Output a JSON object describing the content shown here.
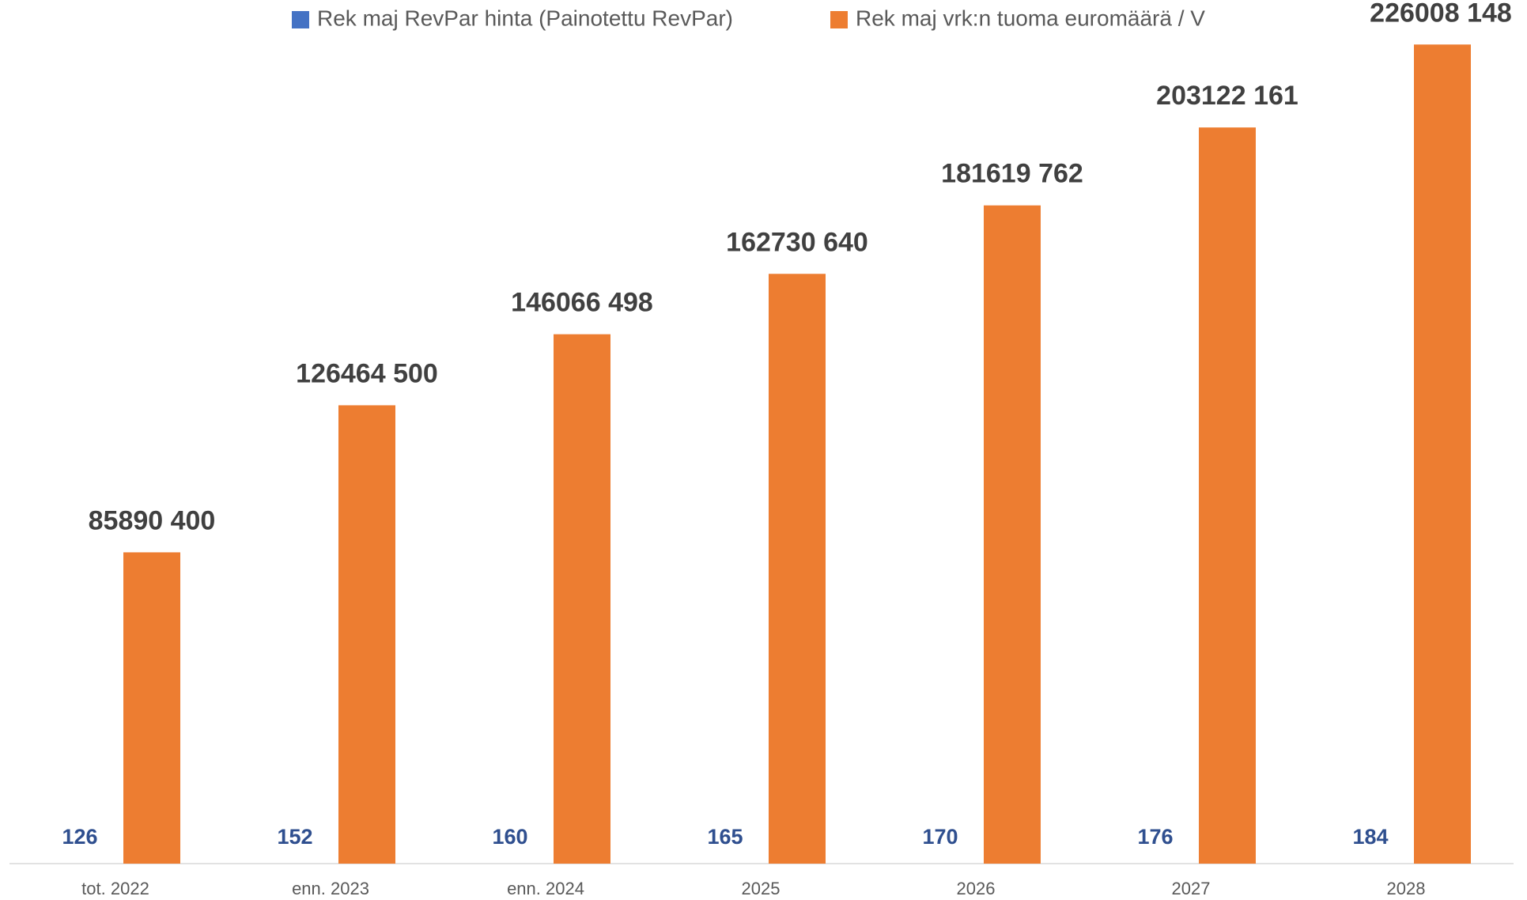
{
  "chart_data": {
    "type": "bar",
    "categories": [
      "tot. 2022",
      "enn. 2023",
      "enn. 2024",
      "2025",
      "2026",
      "2027",
      "2028"
    ],
    "series": [
      {
        "name": "Rek maj RevPar hinta (Painotettu RevPar)",
        "color": "#4472c4",
        "values": [
          126,
          152,
          160,
          165,
          170,
          176,
          184
        ]
      },
      {
        "name": "Rek maj vrk:n  tuoma euromäärä / V",
        "color": "#ed7d31",
        "values": [
          85890400,
          126464500,
          146066498,
          162730640,
          181619762,
          203122161,
          226008148
        ],
        "value_labels": [
          "85890 400",
          "126464 500",
          "146066 498",
          "162730 640",
          "181619 762",
          "203122 161",
          "226008 148"
        ]
      }
    ],
    "ylim": [
      0,
      230000000
    ],
    "legend": "top"
  }
}
